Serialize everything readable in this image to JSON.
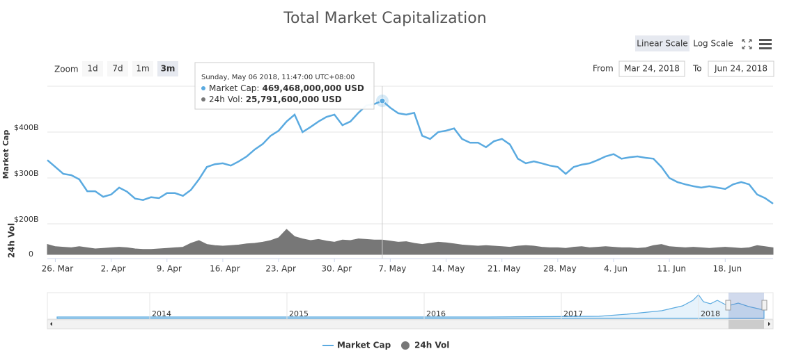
{
  "chart_data": {
    "type": "line",
    "title": "Total Market Capitalization",
    "scale_buttons": [
      "Linear Scale",
      "Log Scale"
    ],
    "log_scale": false,
    "zoom": {
      "label": "Zoom",
      "buttons": [
        "1d",
        "7d",
        "1m",
        "3m"
      ],
      "selected": 3
    },
    "range": {
      "from_label": "From",
      "from": "Mar 24, 2018",
      "to_label": "To",
      "to": "Jun 24, 2018"
    },
    "y_axis_label": "Market Cap",
    "y2_axis_label": "24h Vol",
    "tooltip": {
      "date": "Sunday, May 06 2018, 11:47:00 UTC+08:00",
      "lines": [
        {
          "label": "Market Cap:",
          "value": "469,468,000,000 USD"
        },
        {
          "label": "24h Vol:",
          "value": "25,791,600,000 USD"
        }
      ]
    },
    "navigator_labels": [
      "2014",
      "2015",
      "2016",
      "2017",
      "2018"
    ],
    "xlim": [
      "2018-03-25",
      "2018-06-24"
    ],
    "xticks": [
      {
        "value": "2018-03-26",
        "label": "26. Mar"
      },
      {
        "value": "2018-04-02",
        "label": "2. Apr"
      },
      {
        "value": "2018-04-09",
        "label": "9. Apr"
      },
      {
        "value": "2018-04-16",
        "label": "16. Apr"
      },
      {
        "value": "2018-04-23",
        "label": "23. Apr"
      },
      {
        "value": "2018-04-30",
        "label": "30. Apr"
      },
      {
        "value": "2018-05-07",
        "label": "7. May"
      },
      {
        "value": "2018-05-14",
        "label": "14. May"
      },
      {
        "value": "2018-05-21",
        "label": "21. May"
      },
      {
        "value": "2018-05-28",
        "label": "28. May"
      },
      {
        "value": "2018-06-04",
        "label": "4. Jun"
      },
      {
        "value": "2018-06-11",
        "label": "11. Jun"
      },
      {
        "value": "2018-06-18",
        "label": "18. Jun"
      }
    ],
    "ylim": [
      200,
      500
    ],
    "yticks": [
      {
        "value": 200,
        "label": "$200B"
      },
      {
        "value": 300,
        "label": "$300B"
      },
      {
        "value": 400,
        "label": "$400B"
      }
    ],
    "y2lim": [
      0,
      55
    ],
    "y2ticks": [
      0
    ],
    "grid": true,
    "x": [
      "2018-03-25",
      "2018-03-26",
      "2018-03-27",
      "2018-03-28",
      "2018-03-29",
      "2018-03-30",
      "2018-03-31",
      "2018-04-01",
      "2018-04-02",
      "2018-04-03",
      "2018-04-04",
      "2018-04-05",
      "2018-04-06",
      "2018-04-07",
      "2018-04-08",
      "2018-04-09",
      "2018-04-10",
      "2018-04-11",
      "2018-04-12",
      "2018-04-13",
      "2018-04-14",
      "2018-04-15",
      "2018-04-16",
      "2018-04-17",
      "2018-04-18",
      "2018-04-19",
      "2018-04-20",
      "2018-04-21",
      "2018-04-22",
      "2018-04-23",
      "2018-04-24",
      "2018-04-25",
      "2018-04-26",
      "2018-04-27",
      "2018-04-28",
      "2018-04-29",
      "2018-04-30",
      "2018-05-01",
      "2018-05-02",
      "2018-05-03",
      "2018-05-04",
      "2018-05-05",
      "2018-05-06",
      "2018-05-07",
      "2018-05-08",
      "2018-05-09",
      "2018-05-10",
      "2018-05-11",
      "2018-05-12",
      "2018-05-13",
      "2018-05-14",
      "2018-05-15",
      "2018-05-16",
      "2018-05-17",
      "2018-05-18",
      "2018-05-19",
      "2018-05-20",
      "2018-05-21",
      "2018-05-22",
      "2018-05-23",
      "2018-05-24",
      "2018-05-25",
      "2018-05-26",
      "2018-05-27",
      "2018-05-28",
      "2018-05-29",
      "2018-05-30",
      "2018-05-31",
      "2018-06-01",
      "2018-06-02",
      "2018-06-03",
      "2018-06-04",
      "2018-06-05",
      "2018-06-06",
      "2018-06-07",
      "2018-06-08",
      "2018-06-09",
      "2018-06-10",
      "2018-06-11",
      "2018-06-12",
      "2018-06-13",
      "2018-06-14",
      "2018-06-15",
      "2018-06-16",
      "2018-06-17",
      "2018-06-18",
      "2018-06-19",
      "2018-06-20",
      "2018-06-21",
      "2018-06-22",
      "2018-06-23",
      "2018-06-24"
    ],
    "series": [
      {
        "name": "Market Cap",
        "type": "line",
        "color": "#5aaae0",
        "values": [
          339,
          324,
          309,
          306,
          297,
          271,
          271,
          259,
          264,
          279,
          270,
          255,
          252,
          258,
          256,
          267,
          267,
          261,
          274,
          297,
          324,
          330,
          332,
          327,
          336,
          347,
          362,
          374,
          392,
          403,
          423,
          438,
          400,
          411,
          423,
          433,
          438,
          415,
          423,
          442,
          458,
          461,
          468,
          453,
          441,
          438,
          442,
          392,
          385,
          400,
          403,
          408,
          385,
          377,
          377,
          367,
          380,
          385,
          373,
          342,
          332,
          336,
          332,
          327,
          324,
          309,
          324,
          329,
          332,
          339,
          347,
          352,
          342,
          345,
          347,
          344,
          342,
          324,
          300,
          291,
          286,
          282,
          279,
          282,
          279,
          276,
          286,
          291,
          286,
          264,
          256,
          244
        ]
      },
      {
        "name": "24h Vol",
        "type": "area",
        "axis": "y2",
        "color": "#777777",
        "values": [
          18,
          14,
          13,
          12,
          14,
          12,
          10,
          11,
          12,
          13,
          12,
          10,
          9,
          9,
          10,
          11,
          12,
          13,
          20,
          25,
          18,
          16,
          15,
          16,
          17,
          19,
          20,
          22,
          25,
          30,
          45,
          32,
          28,
          25,
          27,
          24,
          22,
          26,
          25,
          28,
          27,
          26,
          26,
          24,
          22,
          23,
          20,
          18,
          20,
          22,
          21,
          19,
          17,
          16,
          15,
          16,
          15,
          14,
          13,
          15,
          16,
          15,
          13,
          12,
          12,
          11,
          13,
          14,
          12,
          13,
          14,
          13,
          12,
          12,
          11,
          12,
          16,
          18,
          14,
          13,
          12,
          13,
          12,
          11,
          12,
          13,
          12,
          11,
          12,
          16,
          14,
          12
        ]
      }
    ]
  }
}
